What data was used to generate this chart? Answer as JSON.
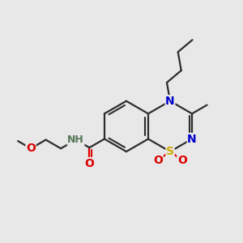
{
  "bg_color": "#e8e8e8",
  "bond_color": "#2d2d2d",
  "bond_width": 1.6,
  "colors": {
    "N": "#0000cc",
    "O": "#dd0000",
    "S": "#ccaa00",
    "C": "#2d2d2d",
    "H": "#557755"
  },
  "figsize": [
    3.0,
    3.0
  ],
  "dpi": 100,
  "xlim": [
    0,
    10
  ],
  "ylim": [
    0,
    10
  ]
}
